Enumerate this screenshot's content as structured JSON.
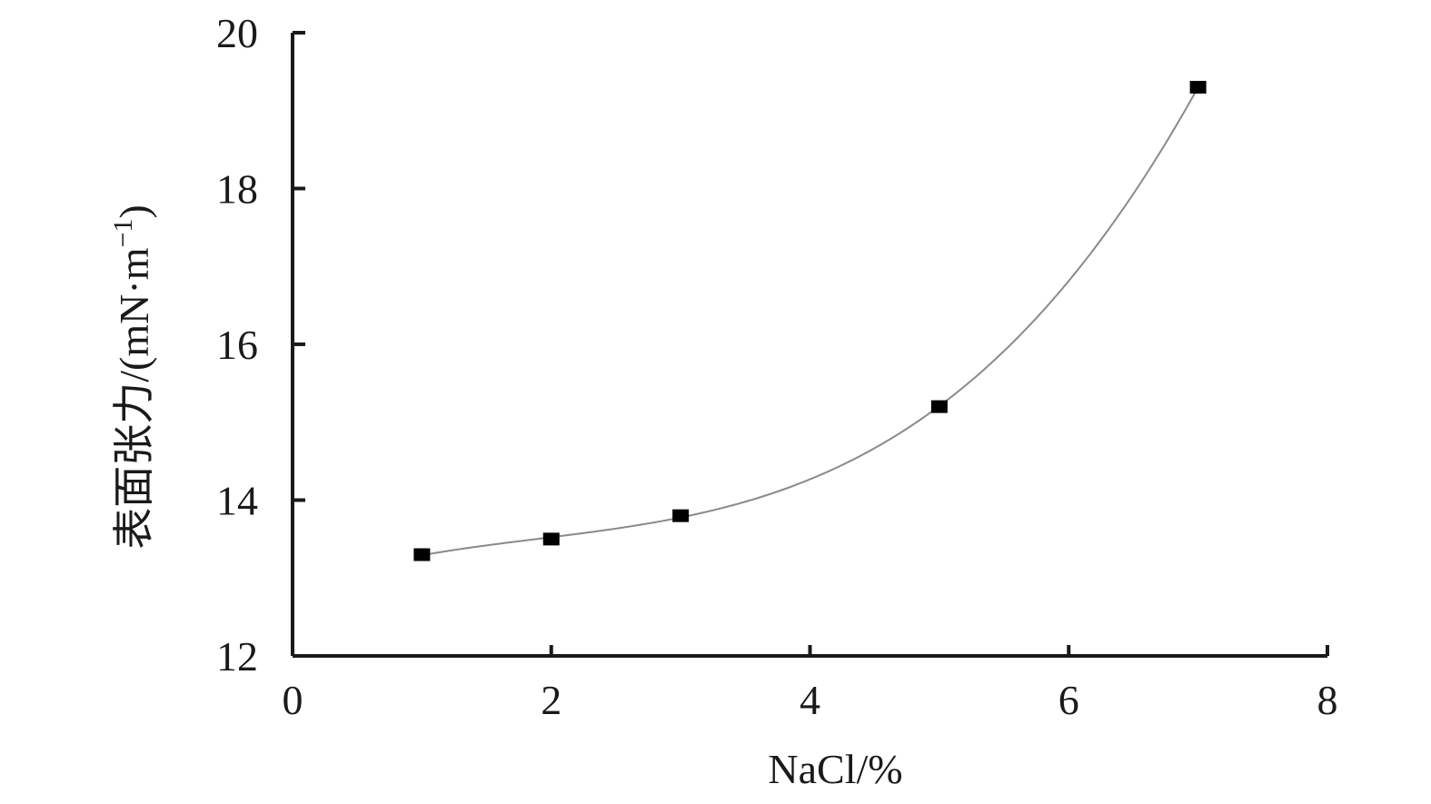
{
  "chart_data": {
    "type": "scatter",
    "xlabel": "NaCl/%",
    "ylabel_main": "表面张力/(mN·m",
    "ylabel_sup": "−1",
    "ylabel_close": ")",
    "xlim": [
      0,
      8
    ],
    "ylim": [
      12,
      20
    ],
    "x_ticks": [
      0,
      2,
      4,
      6,
      8
    ],
    "y_ticks": [
      12,
      14,
      16,
      18,
      20
    ],
    "grid": false,
    "marker": "square",
    "series": [
      {
        "x": [
          1,
          2,
          3,
          5,
          7
        ],
        "y": [
          13.3,
          13.5,
          13.8,
          15.2,
          19.3
        ]
      }
    ],
    "fit_curve": {
      "type": "polynomial",
      "degree": 3,
      "x_range": [
        1,
        7
      ]
    }
  }
}
